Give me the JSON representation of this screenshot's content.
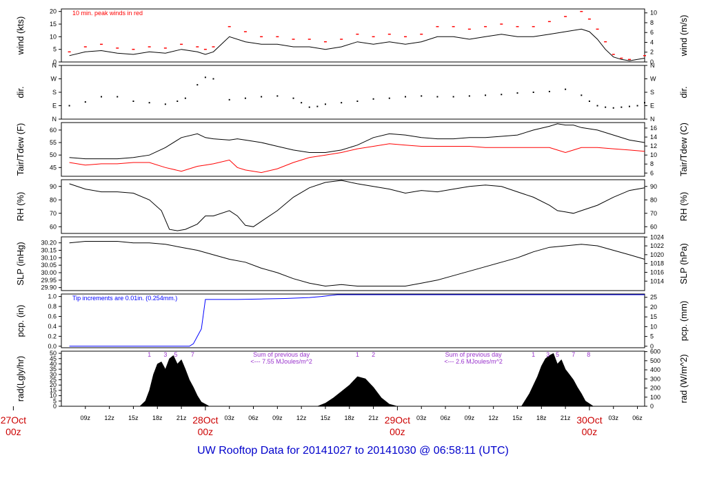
{
  "colors": {
    "line": "#000000",
    "peak": "#ff0000",
    "dew": "#ff0000",
    "precip": "#0000ff",
    "day": "#cc0000",
    "title": "#0000cc",
    "purple": "#9933cc"
  },
  "title": {
    "text": "UW Rooftop Data for 20141027  to  20141030 @ 06:58:11  (UTC)"
  },
  "x_axis": {
    "ticks": [
      {
        "h": 9,
        "label": "09z"
      },
      {
        "h": 12,
        "label": "12z"
      },
      {
        "h": 15,
        "label": "15z"
      },
      {
        "h": 18,
        "label": "18z"
      },
      {
        "h": 21,
        "label": "21z"
      },
      {
        "h": 27,
        "label": "03z"
      },
      {
        "h": 30,
        "label": "06z"
      },
      {
        "h": 33,
        "label": "09z"
      },
      {
        "h": 36,
        "label": "12z"
      },
      {
        "h": 39,
        "label": "15z"
      },
      {
        "h": 42,
        "label": "18z"
      },
      {
        "h": 45,
        "label": "21z"
      },
      {
        "h": 51,
        "label": "03z"
      },
      {
        "h": 54,
        "label": "06z"
      },
      {
        "h": 57,
        "label": "09z"
      },
      {
        "h": 60,
        "label": "12z"
      },
      {
        "h": 63,
        "label": "15z"
      },
      {
        "h": 66,
        "label": "18z"
      },
      {
        "h": 69,
        "label": "21z"
      },
      {
        "h": 75,
        "label": "03z"
      },
      {
        "h": 78,
        "label": "06z"
      }
    ],
    "day_labels": [
      {
        "h": 0,
        "day": "27Oct",
        "time": "00z"
      },
      {
        "h": 24,
        "day": "28Oct",
        "time": "00z"
      },
      {
        "h": 48,
        "day": "29Oct",
        "time": "00z"
      },
      {
        "h": 72,
        "day": "30Oct",
        "time": "00z"
      }
    ]
  },
  "chart_data": [
    {
      "type": "line",
      "id": "wind",
      "ylabel": "wind (kts)",
      "ylabel_right": "wind (m/s)",
      "ylim": [
        0,
        21
      ],
      "yticks": [
        0,
        5,
        10,
        15,
        20
      ],
      "right_ticks": [
        0,
        2,
        4,
        6,
        8,
        10
      ],
      "right_factor": 1.944,
      "annotation": "10 min. peak winds in red",
      "x": [
        7,
        9,
        11,
        13,
        15,
        17,
        19,
        21,
        23,
        24,
        25,
        27,
        29,
        31,
        33,
        35,
        37,
        39,
        41,
        43,
        45,
        47,
        49,
        51,
        53,
        55,
        57,
        59,
        61,
        63,
        65,
        67,
        69,
        71,
        72,
        73,
        74,
        75,
        76,
        77,
        78.9
      ],
      "series": [
        {
          "name": "wind",
          "values": [
            2.5,
            4,
            4.5,
            3.5,
            3,
            4,
            3.5,
            5,
            4,
            3,
            4,
            10,
            8,
            7,
            7,
            6,
            6,
            5,
            6,
            8,
            7,
            8,
            7,
            8,
            10,
            10,
            9,
            10,
            11,
            10,
            10,
            11,
            12,
            13,
            12,
            9,
            5,
            2,
            1,
            0.5,
            1.5
          ]
        },
        {
          "name": "peak",
          "values": [
            4,
            6,
            7,
            5.5,
            5,
            6,
            5.5,
            7,
            6,
            5,
            6,
            14,
            12,
            10,
            10,
            9,
            9,
            8,
            9,
            11,
            10,
            11,
            10,
            11,
            14,
            14,
            13,
            14,
            15,
            14,
            14,
            16,
            18,
            20,
            17,
            13,
            8,
            3,
            1.5,
            1,
            2.5
          ]
        }
      ]
    },
    {
      "type": "scatter",
      "id": "dir",
      "ylabel": "dir.",
      "ylabel_right": "dir.",
      "ylim": [
        0,
        360
      ],
      "yticks": [
        {
          "v": 0,
          "label": "N"
        },
        {
          "v": 90,
          "label": "E"
        },
        {
          "v": 180,
          "label": "S"
        },
        {
          "v": 270,
          "label": "W"
        },
        {
          "v": 360,
          "label": "N"
        }
      ],
      "x": [
        7,
        9,
        11,
        13,
        15,
        17,
        19,
        20.5,
        21.5,
        23,
        24,
        25,
        27,
        29,
        31,
        33,
        35,
        36,
        37,
        38,
        39,
        41,
        43,
        45,
        47,
        49,
        51,
        53,
        55,
        57,
        59,
        61,
        63,
        65,
        67,
        69,
        71,
        72,
        73,
        74,
        75,
        76,
        77,
        78,
        78.9
      ],
      "values": [
        90,
        115,
        150,
        150,
        120,
        110,
        100,
        120,
        140,
        230,
        280,
        270,
        130,
        140,
        150,
        155,
        140,
        110,
        80,
        85,
        100,
        110,
        120,
        135,
        140,
        150,
        155,
        150,
        150,
        155,
        160,
        165,
        175,
        180,
        185,
        200,
        160,
        120,
        90,
        80,
        75,
        80,
        85,
        90,
        110
      ]
    },
    {
      "type": "line",
      "id": "temp",
      "ylabel": "Tair/Tdew (F)",
      "ylabel_right": "Tair/Tdew (C)",
      "ylim": [
        41.5,
        63
      ],
      "yticks": [
        45,
        50,
        55,
        60
      ],
      "right_ticks": [
        6,
        8,
        10,
        12,
        14,
        16
      ],
      "x": [
        7,
        9,
        11,
        13,
        15,
        17,
        19,
        21,
        23,
        24,
        25,
        27,
        28,
        29,
        31,
        33,
        35,
        37,
        39,
        41,
        43,
        45,
        47,
        49,
        51,
        53,
        55,
        57,
        59,
        61,
        63,
        65,
        67,
        68,
        69,
        70,
        71,
        73,
        75,
        77,
        78.9
      ],
      "series": [
        {
          "name": "Tair",
          "values": [
            49,
            48.5,
            48.5,
            48.5,
            49,
            50,
            53,
            57,
            58.5,
            57,
            56.5,
            56,
            56.5,
            56,
            55,
            53.5,
            52,
            51,
            51,
            52,
            54,
            57,
            58.5,
            58,
            57,
            56.5,
            56.5,
            57,
            57,
            57.5,
            58,
            60,
            61.5,
            62.5,
            62,
            62,
            61,
            60,
            58,
            56,
            55
          ]
        },
        {
          "name": "Tdew",
          "values": [
            47,
            46,
            46.5,
            46.5,
            47,
            47,
            45,
            43.5,
            45.5,
            46,
            46.5,
            48,
            45,
            44,
            43,
            44.5,
            47,
            49,
            50,
            51,
            52.5,
            53.5,
            54.5,
            54,
            53.5,
            53.5,
            53.5,
            53.5,
            53,
            53,
            53,
            53,
            53,
            52,
            51,
            52,
            53,
            53,
            52.5,
            52,
            51.5
          ]
        }
      ]
    },
    {
      "type": "line",
      "id": "rh",
      "ylabel": "RH (%)",
      "ylabel_right": "RH (%)",
      "ylim": [
        55,
        95
      ],
      "yticks": [
        60,
        70,
        80,
        90
      ],
      "right_ticks": [
        60,
        70,
        80,
        90
      ],
      "x": [
        7,
        9,
        11,
        13,
        15,
        17,
        18.5,
        19.5,
        20.5,
        21.5,
        23,
        24,
        25,
        27,
        28,
        29,
        30,
        31,
        33,
        35,
        37,
        39,
        41,
        43,
        45,
        47,
        49,
        51,
        53,
        55,
        57,
        59,
        61,
        63,
        65,
        67,
        68,
        69,
        70,
        71,
        73,
        75,
        77,
        78.9
      ],
      "values": [
        92,
        88,
        86,
        86,
        85,
        80,
        72,
        58,
        57,
        58,
        62,
        68,
        68,
        72,
        68,
        61,
        60,
        64,
        72,
        82,
        89,
        93,
        95,
        92,
        90,
        88,
        85,
        87,
        86,
        88,
        90,
        91,
        90,
        86,
        82,
        76,
        72,
        71,
        70,
        72,
        76,
        82,
        87,
        89
      ]
    },
    {
      "type": "line",
      "id": "slp",
      "ylabel": "SLP (inHg)",
      "ylabel_right": "SLP (hPa)",
      "ylim": [
        29.88,
        30.24
      ],
      "yticks": [
        29.9,
        29.95,
        30.0,
        30.05,
        30.1,
        30.15,
        30.2
      ],
      "right_ticks": [
        1014,
        1016,
        1018,
        1020,
        1022,
        1024
      ],
      "hpa_factor": 33.8639,
      "x": [
        7,
        9,
        11,
        13,
        15,
        17,
        19,
        21,
        23,
        25,
        27,
        29,
        31,
        33,
        35,
        37,
        39,
        41,
        43,
        45,
        47,
        49,
        51,
        53,
        55,
        57,
        59,
        61,
        63,
        65,
        67,
        69,
        71,
        73,
        75,
        77,
        78.9
      ],
      "values": [
        30.2,
        30.21,
        30.21,
        30.21,
        30.2,
        30.2,
        30.19,
        30.17,
        30.15,
        30.12,
        30.09,
        30.07,
        30.03,
        30.0,
        29.96,
        29.93,
        29.91,
        29.92,
        29.91,
        29.91,
        29.91,
        29.91,
        29.93,
        29.95,
        29.98,
        30.01,
        30.04,
        30.07,
        30.1,
        30.14,
        30.17,
        30.18,
        30.19,
        30.18,
        30.15,
        30.12,
        30.09
      ]
    },
    {
      "type": "line",
      "id": "pcp",
      "ylabel": "pcp. (in)",
      "ylabel_right": "pcp. (mm)",
      "ylim": [
        -0.03,
        1.05
      ],
      "yticks": [
        0.0,
        0.2,
        0.4,
        0.6,
        0.8,
        1.0
      ],
      "right_ticks": [
        0,
        5,
        10,
        15,
        20,
        25
      ],
      "mm_factor": 25.4,
      "annotation": "Tip increments are 0.01in. (0.254mm.)",
      "x": [
        7,
        22,
        22.5,
        23,
        23.5,
        24,
        25,
        28,
        31,
        34,
        37,
        38.5,
        39.5,
        40.5,
        41.5,
        42.5,
        43.5,
        45,
        48,
        78.9
      ],
      "values": [
        0.0,
        0.0,
        0.05,
        0.2,
        0.35,
        0.94,
        0.94,
        0.94,
        0.95,
        0.96,
        0.98,
        1.0,
        1.02,
        1.04,
        1.06,
        1.07,
        1.08,
        1.09,
        1.09,
        1.09
      ]
    },
    {
      "type": "area",
      "id": "rad",
      "ylabel": "rad(Lgly/hr)",
      "ylabel_right": "rad (W/m^2)",
      "ylim": [
        0,
        52
      ],
      "yticks": [
        0,
        5,
        10,
        15,
        20,
        25,
        30,
        35,
        40,
        45,
        50
      ],
      "right_ticks": [
        0,
        100,
        200,
        300,
        400,
        500,
        600
      ],
      "wm2_factor": 11.63,
      "x": [
        15.8,
        16.5,
        17,
        17.5,
        18,
        18.5,
        19,
        19.5,
        20,
        20.5,
        21,
        21.5,
        22,
        22.5,
        23,
        23.5,
        24.5,
        38,
        39,
        40,
        41,
        42,
        43,
        44,
        45,
        46,
        47,
        48,
        63.5,
        64.5,
        65.5,
        66,
        66.5,
        67,
        67.5,
        68,
        68.5,
        69,
        69.5,
        70,
        70.5,
        71,
        71.5,
        72.5
      ],
      "values": [
        0,
        5,
        15,
        30,
        40,
        42,
        35,
        45,
        48,
        40,
        44,
        35,
        25,
        18,
        10,
        4,
        0,
        0,
        3,
        8,
        14,
        20,
        28,
        26,
        18,
        8,
        2,
        0,
        0,
        12,
        28,
        38,
        45,
        48,
        50,
        40,
        44,
        35,
        30,
        25,
        18,
        12,
        5,
        0
      ],
      "markers": [
        {
          "h": 17,
          "label": "1"
        },
        {
          "h": 19,
          "label": "3"
        },
        {
          "h": 20.3,
          "label": "5"
        },
        {
          "h": 22.4,
          "label": "7"
        },
        {
          "h": 43,
          "label": "1"
        },
        {
          "h": 45,
          "label": "2"
        },
        {
          "h": 65,
          "label": "1"
        },
        {
          "h": 66.8,
          "label": "3"
        },
        {
          "h": 68,
          "label": "5"
        },
        {
          "h": 70,
          "label": "7"
        },
        {
          "h": 71.9,
          "label": "8"
        }
      ],
      "sum_notes": [
        {
          "h": 33.5,
          "line1": "Sum of previous day",
          "line2": "<--- 7.55 MJoules/m^2"
        },
        {
          "h": 57.5,
          "line1": "Sum of previous day",
          "line2": "<--- 2.6 MJoules/m^2"
        }
      ]
    }
  ]
}
